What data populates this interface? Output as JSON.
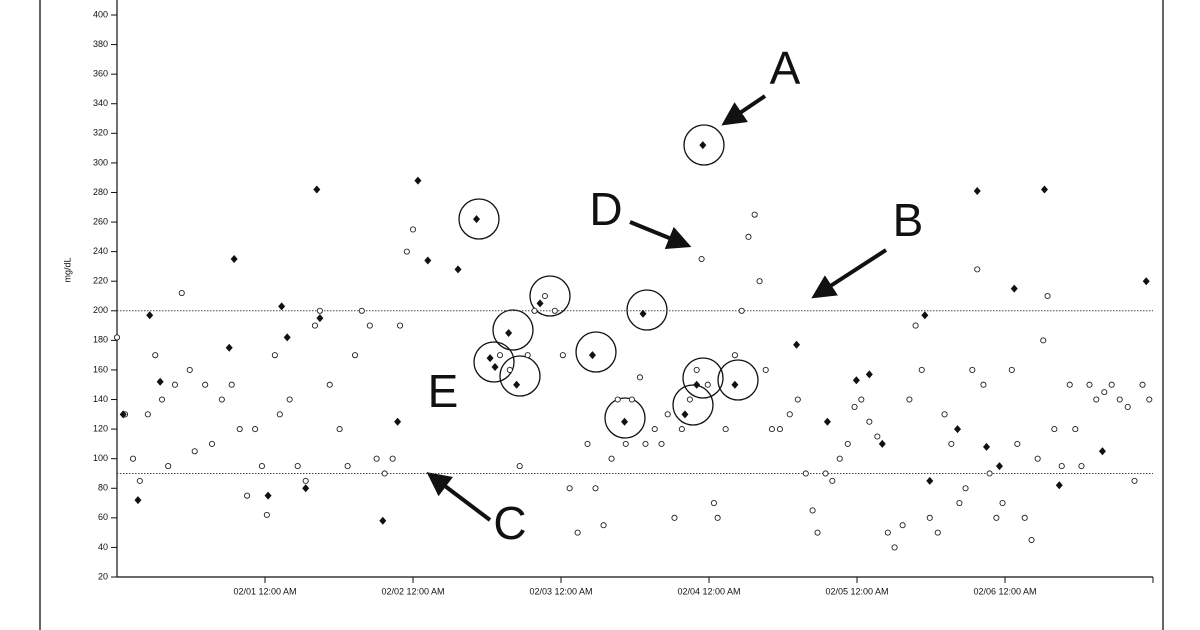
{
  "chart_data": {
    "type": "scatter",
    "y_label": "mg/dL",
    "xlim": [
      0,
      168
    ],
    "xticks": [
      {
        "value": 24,
        "label": "02/01 12:00 AM"
      },
      {
        "value": 48,
        "label": "02/02 12:00 AM"
      },
      {
        "value": 72,
        "label": "02/03 12:00 AM"
      },
      {
        "value": 96,
        "label": "02/04 12:00 AM"
      },
      {
        "value": 120,
        "label": "02/05 12:00 AM"
      },
      {
        "value": 144,
        "label": "02/06 12:00 AM"
      }
    ],
    "ylim": [
      20,
      400
    ],
    "yticks": [
      20,
      40,
      60,
      80,
      100,
      120,
      140,
      160,
      180,
      200,
      220,
      240,
      260,
      280,
      300,
      320,
      340,
      360,
      380,
      400
    ],
    "reference_lines": [
      200,
      90
    ],
    "annotations": [
      "A",
      "B",
      "C",
      "D",
      "E"
    ],
    "series": [
      {
        "marker": "circle",
        "color": "#222",
        "x": [
          0,
          1.3,
          2.6,
          3.7,
          5.0,
          6.2,
          7.3,
          8.3,
          9.4,
          10.5,
          11.8,
          12.6,
          14.3,
          15.4,
          17.0,
          18.6,
          19.9,
          21.1,
          22.4,
          23.5,
          24.3,
          25.6,
          26.4,
          28.0,
          29.3,
          30.6,
          32.1,
          32.9,
          34.5,
          36.1,
          37.4,
          38.6,
          39.7,
          41.0,
          42.1,
          43.4,
          44.7,
          45.9,
          47.0,
          48.0,
          62.1,
          63.7,
          65.3,
          66.6,
          67.7,
          69.4,
          71.0,
          72.3,
          73.4,
          74.7,
          76.3,
          77.6,
          78.9,
          80.2,
          81.2,
          82.5,
          83.5,
          84.8,
          85.7,
          87.2,
          88.3,
          89.3,
          90.4,
          91.6,
          92.9,
          94.0,
          94.8,
          95.8,
          96.8,
          97.4,
          98.7,
          100.2,
          101.3,
          102.4,
          103.4,
          104.2,
          105.2,
          106.2,
          107.5,
          109.1,
          110.4,
          111.7,
          112.8,
          113.6,
          114.9,
          116.0,
          117.2,
          118.5,
          119.6,
          120.7,
          122.0,
          123.3,
          125.0,
          126.1,
          127.4,
          128.5,
          129.5,
          130.5,
          131.8,
          133.1,
          134.2,
          135.3,
          136.6,
          137.6,
          138.7,
          139.5,
          140.5,
          141.5,
          142.6,
          143.6,
          145.1,
          146.0,
          147.2,
          148.3,
          149.3,
          150.2,
          150.9,
          152.0,
          153.2,
          154.5,
          155.4,
          156.4,
          157.7,
          158.8,
          160.1,
          161.3,
          162.6,
          163.9,
          165.0,
          166.3,
          167.4
        ],
        "values": [
          182,
          130,
          100,
          85,
          130,
          170,
          140,
          95,
          150,
          212,
          160,
          105,
          150,
          110,
          140,
          150,
          120,
          75,
          120,
          95,
          62,
          170,
          130,
          140,
          95,
          85,
          190,
          200,
          150,
          120,
          95,
          170,
          200,
          190,
          100,
          90,
          100,
          190,
          240,
          255,
          170,
          160,
          95,
          170,
          200,
          210,
          200,
          170,
          80,
          50,
          110,
          80,
          55,
          100,
          140,
          110,
          140,
          155,
          110,
          120,
          110,
          130,
          60,
          120,
          140,
          160,
          235,
          150,
          70,
          60,
          120,
          170,
          200,
          250,
          265,
          220,
          160,
          120,
          120,
          130,
          140,
          90,
          65,
          50,
          90,
          85,
          100,
          110,
          135,
          140,
          125,
          115,
          50,
          40,
          55,
          140,
          190,
          160,
          60,
          50,
          130,
          110,
          70,
          80,
          160,
          228,
          150,
          90,
          60,
          70,
          160,
          110,
          60,
          45,
          100,
          180,
          210,
          120,
          95,
          150,
          120,
          95,
          150,
          140,
          145,
          150,
          140,
          135,
          85,
          150,
          140
        ]
      },
      {
        "marker": "diamond",
        "color": "#111",
        "x": [
          1.0,
          3.4,
          5.3,
          7.0,
          18.2,
          19.0,
          24.5,
          26.7,
          27.6,
          30.6,
          32.4,
          32.9,
          43.1,
          45.5,
          48.8,
          50.4,
          55.3,
          58.3,
          60.5,
          61.3,
          63.5,
          64.8,
          68.6,
          77.1,
          82.3,
          85.3,
          92.1,
          94.0,
          95.0,
          100.2,
          110.2,
          115.2,
          119.9,
          122.0,
          124.1,
          131.0,
          131.8,
          136.3,
          139.5,
          141.0,
          143.1,
          145.5,
          150.4,
          152.8,
          159.8,
          166.9
        ],
        "values": [
          130,
          72,
          197,
          152,
          175,
          235,
          75,
          203,
          182,
          80,
          282,
          195,
          58,
          125,
          288,
          234,
          228,
          262,
          168,
          162,
          185,
          150,
          205,
          170,
          125,
          198,
          130,
          150,
          312,
          150,
          177,
          125,
          153,
          157,
          110,
          197,
          85,
          120,
          281,
          108,
          95,
          215,
          282,
          82,
          105,
          220
        ]
      }
    ]
  }
}
